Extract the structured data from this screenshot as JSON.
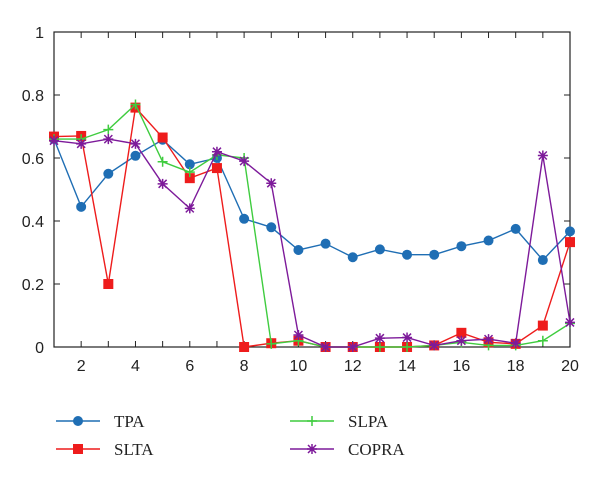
{
  "chart_data": {
    "type": "line",
    "title": "",
    "xlabel": "",
    "ylabel": "",
    "xlim": [
      1,
      20
    ],
    "ylim": [
      0,
      1
    ],
    "x": [
      1,
      2,
      3,
      4,
      5,
      6,
      7,
      8,
      9,
      10,
      11,
      12,
      13,
      14,
      15,
      16,
      17,
      18,
      19,
      20
    ],
    "xticks": [
      2,
      4,
      6,
      8,
      10,
      12,
      14,
      16,
      18,
      20
    ],
    "yticks": [
      0,
      0.2,
      0.4,
      0.6,
      0.8,
      1
    ],
    "ytick_labels": [
      "0",
      "0.2",
      "0.4",
      "0.6",
      "0.8",
      "1"
    ],
    "grid": false,
    "legend_position": "bottom",
    "series": [
      {
        "name": "TPA",
        "color": "#1f6eb4",
        "marker": "circle",
        "values": [
          0.66,
          0.445,
          0.55,
          0.607,
          0.658,
          0.58,
          0.6,
          0.407,
          0.38,
          0.308,
          0.328,
          0.285,
          0.31,
          0.293,
          0.293,
          0.32,
          0.338,
          0.375,
          0.276,
          0.367
        ]
      },
      {
        "name": "SLTA",
        "color": "#ee1c1c",
        "marker": "square",
        "values": [
          0.668,
          0.67,
          0.2,
          0.76,
          0.665,
          0.536,
          0.568,
          0.0,
          0.012,
          0.02,
          0.0,
          0.0,
          0.0,
          0.0,
          0.005,
          0.045,
          0.015,
          0.01,
          0.068,
          0.333
        ]
      },
      {
        "name": "SLPA",
        "color": "#3fcc3f",
        "marker": "plus",
        "values": [
          0.66,
          0.66,
          0.69,
          0.77,
          0.588,
          0.555,
          0.61,
          0.6,
          0.01,
          0.02,
          0.0,
          0.0,
          0.0,
          0.0,
          0.005,
          0.015,
          0.005,
          0.005,
          0.02,
          0.075
        ]
      },
      {
        "name": "COPRA",
        "color": "#7d1a9a",
        "marker": "star",
        "values": [
          0.655,
          0.645,
          0.66,
          0.645,
          0.518,
          0.44,
          0.62,
          0.59,
          0.52,
          0.038,
          0.0,
          0.0,
          0.028,
          0.03,
          0.005,
          0.02,
          0.025,
          0.012,
          0.608,
          0.078
        ]
      }
    ]
  }
}
